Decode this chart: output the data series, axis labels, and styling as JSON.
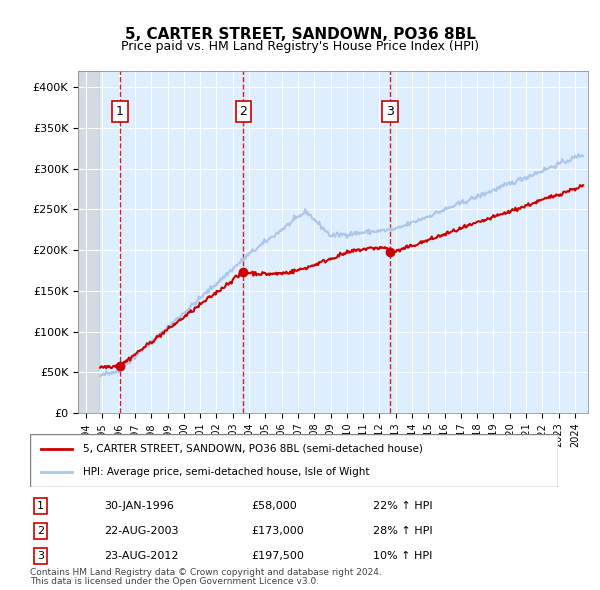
{
  "title": "5, CARTER STREET, SANDOWN, PO36 8BL",
  "subtitle": "Price paid vs. HM Land Registry's House Price Index (HPI)",
  "legend_line1": "5, CARTER STREET, SANDOWN, PO36 8BL (semi-detached house)",
  "legend_line2": "HPI: Average price, semi-detached house, Isle of Wight",
  "footer_line1": "Contains HM Land Registry data © Crown copyright and database right 2024.",
  "footer_line2": "This data is licensed under the Open Government Licence v3.0.",
  "sales": [
    {
      "num": 1,
      "date_label": "30-JAN-1996",
      "date_x": 1996.08,
      "price": 58000,
      "pct": "22%"
    },
    {
      "num": 2,
      "date_label": "22-AUG-2003",
      "date_x": 2003.64,
      "price": 173000,
      "pct": "28%"
    },
    {
      "num": 3,
      "date_label": "23-AUG-2012",
      "date_x": 2012.64,
      "price": 197500,
      "pct": "10%"
    }
  ],
  "hpi_color": "#aec6e8",
  "price_color": "#cc0000",
  "sale_dot_color": "#cc0000",
  "vline_color": "#cc0000",
  "bg_plot": "#ddeeff",
  "bg_hatch": "#e8e8e8",
  "ylim": [
    0,
    420000
  ],
  "yticks": [
    0,
    50000,
    100000,
    150000,
    200000,
    250000,
    300000,
    350000,
    400000
  ],
  "xlim_start": 1993.5,
  "xlim_end": 2024.8
}
